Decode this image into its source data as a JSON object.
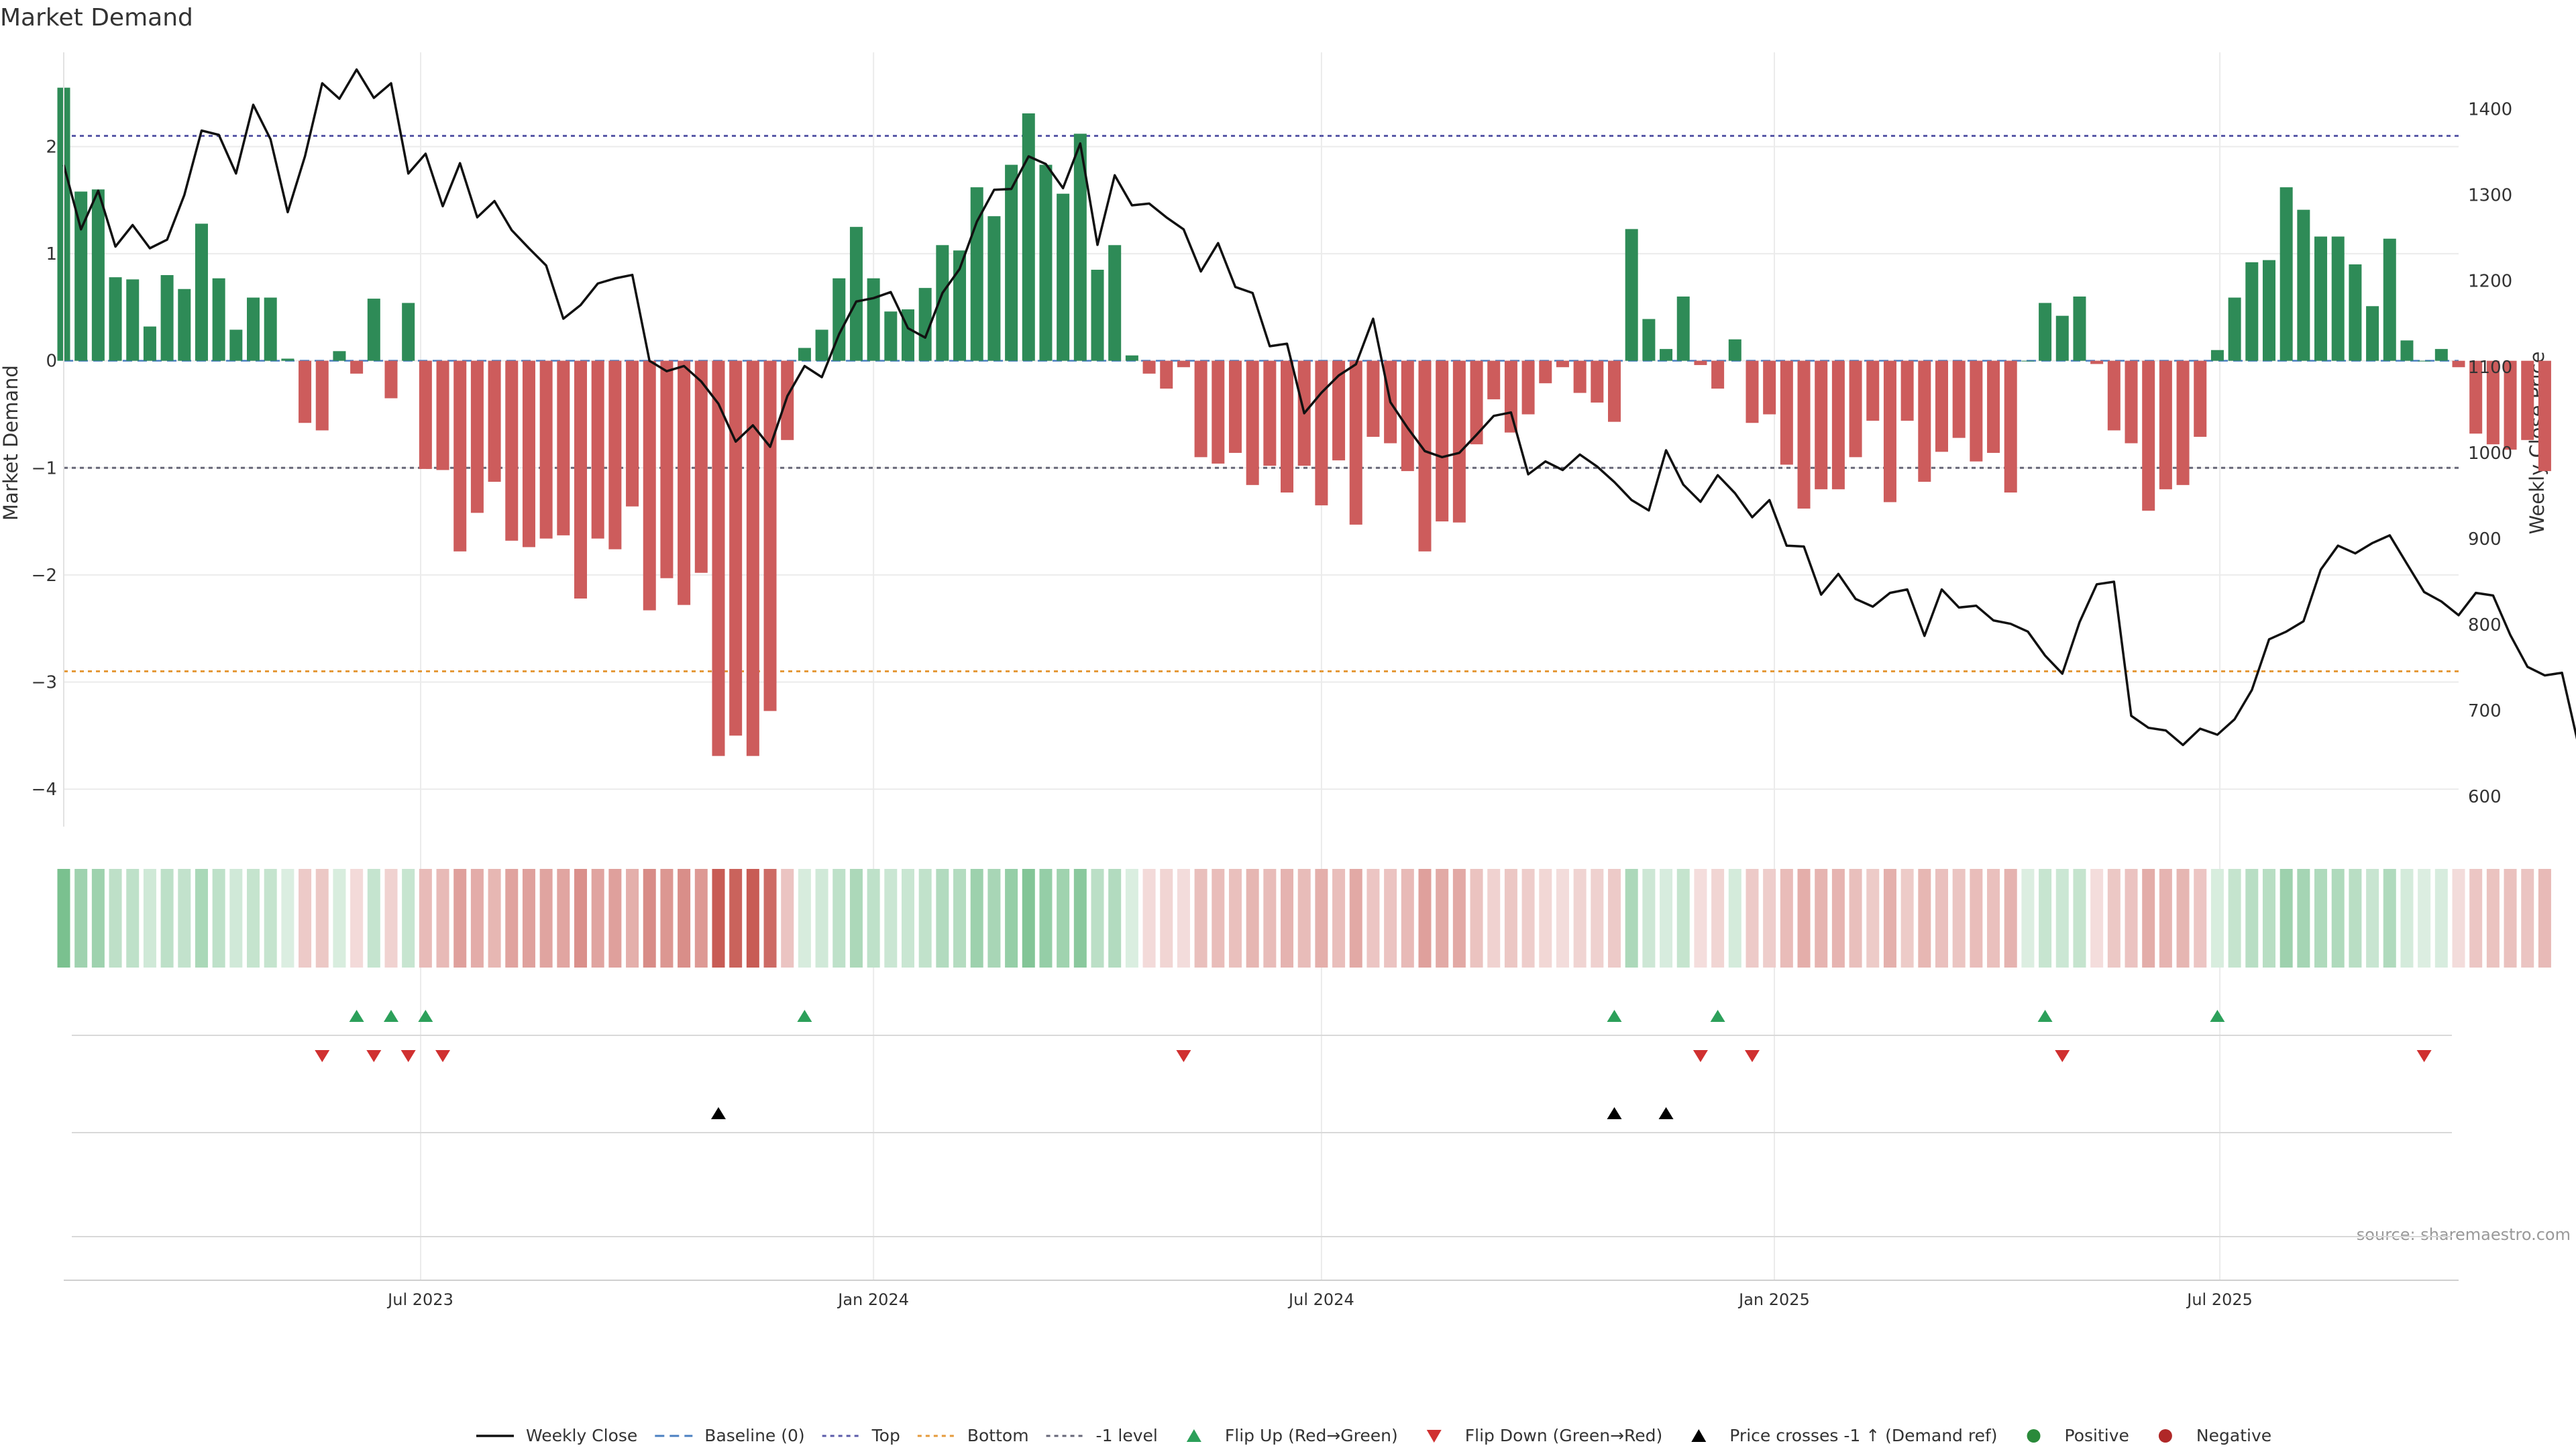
{
  "chart_data": {
    "type": "bar",
    "title": "Market Demand",
    "ylabel": "Market Demand",
    "y2label": "Weekly Close Price",
    "ylim": [
      -4.35,
      2.88
    ],
    "y2lim": [
      565,
      1466
    ],
    "yticks": [
      2,
      1,
      0,
      -1,
      -2,
      -3,
      -4
    ],
    "ytick_labels": [
      "2",
      "1",
      "0",
      "−1",
      "−2",
      "−3",
      "−4"
    ],
    "y2ticks": [
      1400,
      1300,
      1200,
      1100,
      1000,
      900,
      800,
      700,
      600
    ],
    "x_start": "2023-02-06",
    "x_end": "2025-10-06",
    "xticks": [
      {
        "date": "2023-07-01",
        "label": "Jul 2023"
      },
      {
        "date": "2024-01-01",
        "label": "Jan 2024"
      },
      {
        "date": "2024-07-01",
        "label": "Jul 2024"
      },
      {
        "date": "2025-01-01",
        "label": "Jan 2025"
      },
      {
        "date": "2025-07-01",
        "label": "Jul 2025"
      }
    ],
    "reference_lines": {
      "top": 2.1,
      "bottom": -2.9,
      "minus_one": -1
    },
    "series": [
      {
        "name": "Market Demand",
        "first_date": "2023-02-06",
        "interval_days": 7,
        "values": [
          2.55,
          1.58,
          1.6,
          0.78,
          0.76,
          0.32,
          0.8,
          0.67,
          1.28,
          0.77,
          0.29,
          0.59,
          0.59,
          0.02,
          -0.58,
          -0.65,
          0.09,
          -0.12,
          0.58,
          -0.35,
          0.54,
          -1.01,
          -1.02,
          -1.78,
          -1.42,
          -1.13,
          -1.68,
          -1.74,
          -1.66,
          -1.63,
          -2.22,
          -1.66,
          -1.76,
          -1.36,
          -2.33,
          -2.03,
          -2.28,
          -1.98,
          -3.69,
          -3.5,
          -3.69,
          -3.27,
          -0.74,
          0.12,
          0.29,
          0.77,
          1.25,
          0.77,
          0.46,
          0.48,
          0.68,
          1.08,
          1.03,
          1.62,
          1.35,
          1.83,
          2.31,
          1.83,
          1.56,
          2.12,
          0.85,
          1.08,
          0.05,
          -0.12,
          -0.26,
          -0.06,
          -0.9,
          -0.96,
          -0.86,
          -1.16,
          -0.98,
          -1.23,
          -0.98,
          -1.35,
          -0.93,
          -1.53,
          -0.71,
          -0.77,
          -1.03,
          -1.78,
          -1.5,
          -1.51,
          -0.78,
          -0.36,
          -0.67,
          -0.5,
          -0.21,
          -0.06,
          -0.3,
          -0.39,
          -0.57,
          1.23,
          0.39,
          0.11,
          0.6,
          -0.04,
          -0.26,
          0.2,
          -0.58,
          -0.5,
          -0.97,
          -1.38,
          -1.2,
          -1.2,
          -0.9,
          -0.56,
          -1.32,
          -0.56,
          -1.13,
          -0.85,
          -0.72,
          -0.94,
          -0.86,
          -1.23,
          0.0,
          0.54,
          0.42,
          0.6,
          -0.03,
          -0.65,
          -0.77,
          -1.4,
          -1.2,
          -1.16,
          -0.71,
          0.1,
          0.59,
          0.92,
          0.94,
          1.62,
          1.41,
          1.16,
          1.16,
          0.9,
          0.51,
          1.14,
          0.19,
          0.0,
          0.11,
          -0.06,
          -0.68,
          -0.78,
          -0.83,
          -0.74,
          -1.03
        ]
      },
      {
        "name": "Weekly Close",
        "first_date": "2023-02-06",
        "interval_days": 7,
        "values": [
          1335,
          1260,
          1305,
          1240,
          1265,
          1238,
          1248,
          1300,
          1375,
          1370,
          1325,
          1405,
          1365,
          1280,
          1345,
          1430,
          1412,
          1446,
          1413,
          1430,
          1325,
          1348,
          1287,
          1337,
          1274,
          1293,
          1259,
          1238,
          1218,
          1156,
          1172,
          1197,
          1203,
          1207,
          1107,
          1095,
          1101,
          1083,
          1057,
          1013,
          1032,
          1007,
          1066,
          1101,
          1088,
          1138,
          1176,
          1180,
          1187,
          1145,
          1134,
          1186,
          1214,
          1269,
          1306,
          1307,
          1345,
          1336,
          1308,
          1360,
          1242,
          1323,
          1288,
          1290,
          1274,
          1260,
          1211,
          1244,
          1193,
          1186,
          1124,
          1127,
          1046,
          1070,
          1090,
          1103,
          1156,
          1059,
          1029,
          1002,
          995,
          1000,
          1021,
          1043,
          1047,
          975,
          990,
          980,
          998,
          984,
          966,
          945,
          933,
          1003,
          963,
          943,
          974,
          953,
          925,
          945,
          892,
          891,
          835,
          859,
          830,
          821,
          837,
          841,
          787,
          841,
          820,
          822,
          805,
          801,
          792,
          764,
          743,
          803,
          847,
          850,
          694,
          680,
          677,
          660,
          679,
          672,
          690,
          724,
          783,
          792,
          804,
          864,
          892,
          883,
          895,
          904,
          871,
          838,
          827,
          811,
          837,
          834,
          788,
          751,
          741,
          744,
          656
        ]
      }
    ],
    "flip_up_dates": [
      "2023-06-05",
      "2023-06-19",
      "2023-07-03",
      "2023-12-04",
      "2024-10-28",
      "2024-12-09",
      "2025-04-21",
      "2025-06-30"
    ],
    "flip_down_dates": [
      "2023-05-22",
      "2023-06-12",
      "2023-06-26",
      "2023-07-10",
      "2024-05-06",
      "2024-12-02",
      "2024-12-23",
      "2025-04-28",
      "2025-09-22"
    ],
    "price_cross_dates": [
      "2023-10-30",
      "2024-10-28",
      "2024-11-18"
    ],
    "legend": {
      "placement": "bottom",
      "entries": [
        {
          "label": "Weekly Close",
          "kind": "line",
          "color": "#111111"
        },
        {
          "label": "Baseline (0)",
          "kind": "dash",
          "color": "#4a7fc1"
        },
        {
          "label": "Top",
          "kind": "dot",
          "color": "#5a5aa8"
        },
        {
          "label": "Bottom",
          "kind": "dot",
          "color": "#e59a3a"
        },
        {
          "label": "-1 level",
          "kind": "dot",
          "color": "#666677"
        },
        {
          "label": "Flip Up (Red→Green)",
          "kind": "tri-up",
          "color": "#2ca05a"
        },
        {
          "label": "Flip Down (Green→Red)",
          "kind": "tri-down",
          "color": "#d03030"
        },
        {
          "label": "Price crosses -1 ↑ (Demand ref)",
          "kind": "tri-up",
          "color": "#000000"
        },
        {
          "label": "Positive",
          "kind": "circle",
          "color": "#2a8a3a"
        },
        {
          "label": "Negative",
          "kind": "circle",
          "color": "#b02828"
        }
      ]
    },
    "source": "source: sharemaestro.com",
    "colors": {
      "positive": "#2e8b57",
      "negative": "#cd5c5c",
      "price": "#111111",
      "top": "#5a5aa8",
      "bottom": "#e59a3a",
      "minus_one": "#666677",
      "flip_up": "#2ca05a",
      "flip_down": "#d03030",
      "cross": "#000000",
      "grid": "#ebebeb"
    },
    "grid": true
  }
}
